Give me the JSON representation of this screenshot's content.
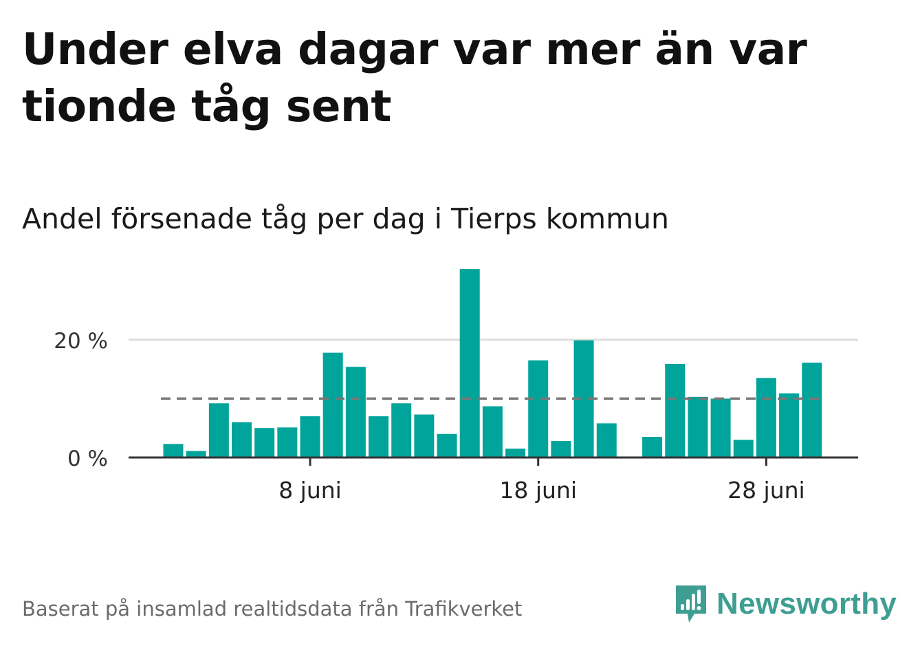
{
  "title": "Under elva dagar var mer än var tionde tåg sent",
  "subtitle": "Andel försenade tåg per dag i Tierps kommun",
  "source": "Baserat på insamlad realtidsdata från Trafikverket",
  "logo": {
    "text": "Newsworthy",
    "icon": "newsworthy-logo-icon",
    "color": "#3e9e92"
  },
  "chart_data": {
    "type": "bar",
    "x": [
      "2 juni",
      "3 juni",
      "4 juni",
      "5 juni",
      "6 juni",
      "7 juni",
      "8 juni",
      "9 juni",
      "10 juni",
      "11 juni",
      "12 juni",
      "13 juni",
      "14 juni",
      "15 juni",
      "16 juni",
      "17 juni",
      "18 juni",
      "19 juni",
      "20 juni",
      "21 juni",
      "22 juni",
      "23 juni",
      "24 juni",
      "25 juni",
      "26 juni",
      "27 juni",
      "28 juni",
      "29 juni",
      "30 juni"
    ],
    "values": [
      2.3,
      1.1,
      9.2,
      6.0,
      5.0,
      5.1,
      7.0,
      17.8,
      15.4,
      7.0,
      9.2,
      7.3,
      4.0,
      32.0,
      8.7,
      1.5,
      16.5,
      2.8,
      19.9,
      5.8,
      0.0,
      3.5,
      15.9,
      10.3,
      10.0,
      3.0,
      13.5,
      10.9,
      16.1
    ],
    "x_ticks": [
      "8 juni",
      "18 juni",
      "28 juni"
    ],
    "y_ticks": [
      "0 %",
      "20 %"
    ],
    "y_tick_values": [
      0,
      20
    ],
    "ylim": [
      0,
      34
    ],
    "reference_line": 10,
    "bar_color": "#00a49a",
    "reference_line_color": "#777777",
    "grid": true
  }
}
